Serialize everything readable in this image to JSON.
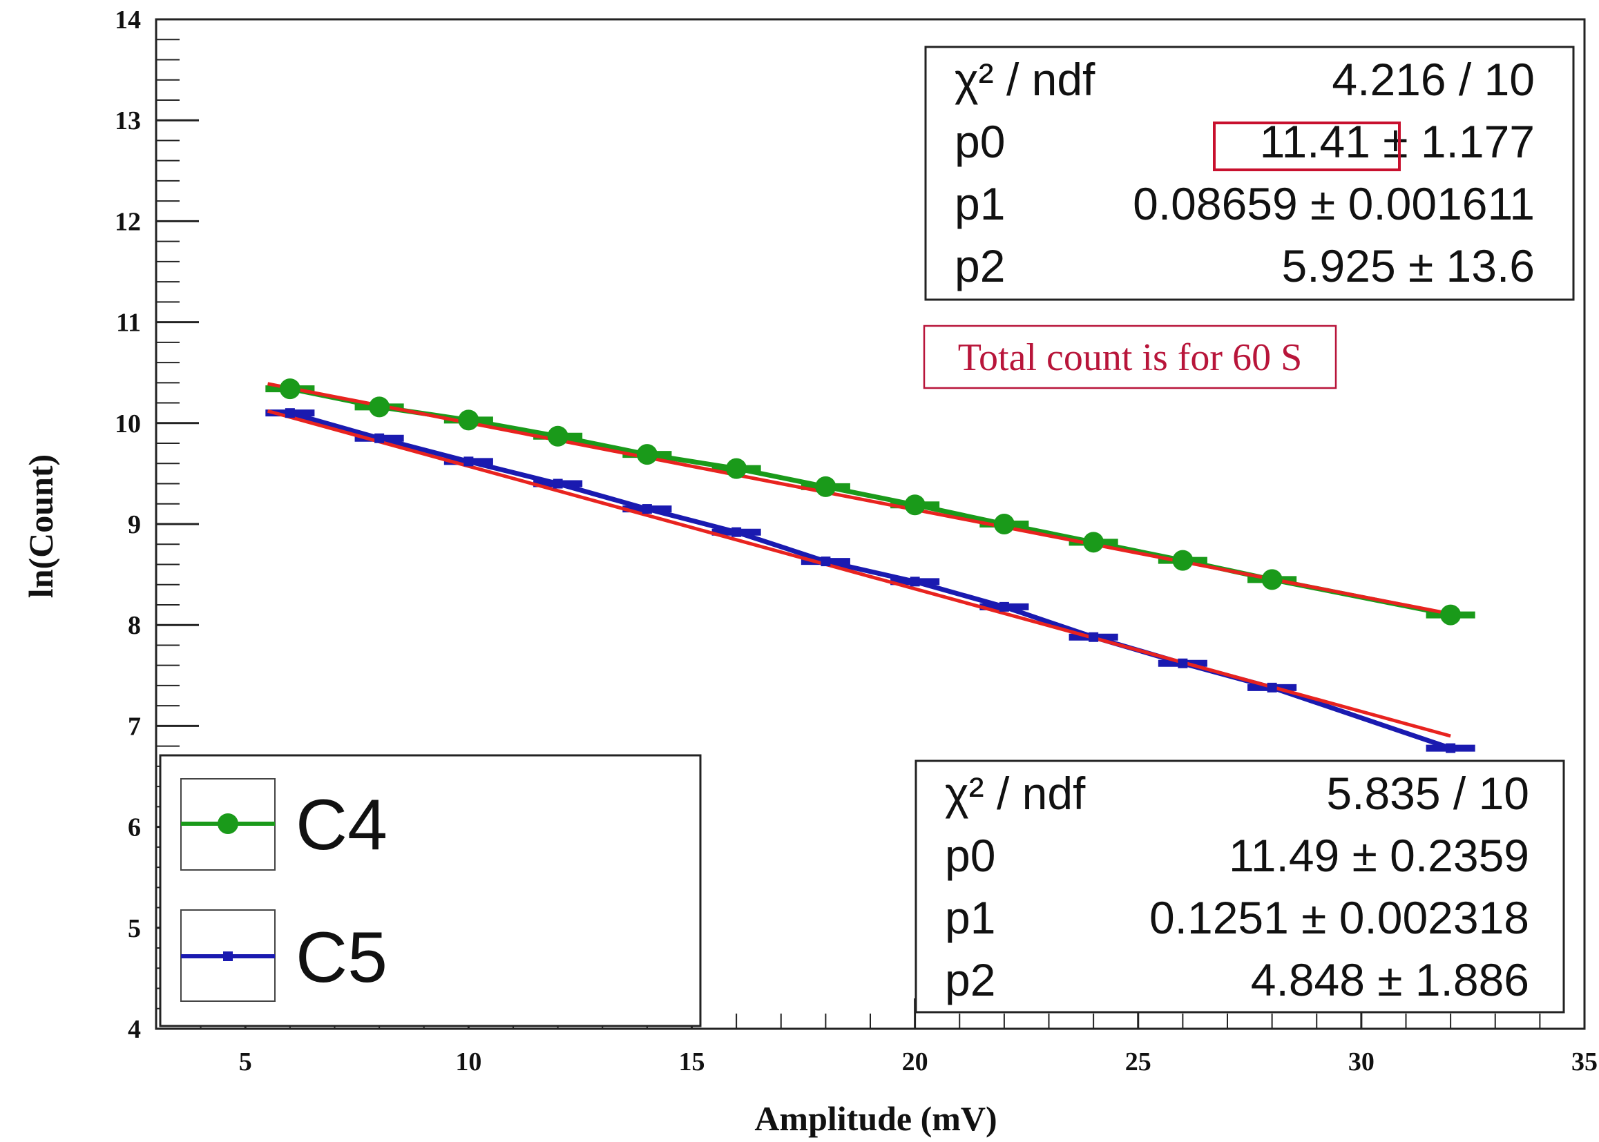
{
  "chart_data": {
    "type": "line",
    "title": "",
    "xlabel": "Amplitude (mV)",
    "ylabel": "ln(Count)",
    "xlim": [
      3,
      35
    ],
    "ylim": [
      4,
      14
    ],
    "x_ticks": [
      5,
      10,
      15,
      20,
      25,
      30,
      35
    ],
    "y_ticks": [
      4,
      5,
      6,
      7,
      8,
      9,
      10,
      11,
      12,
      13,
      14
    ],
    "grid": false,
    "legend_position": "bottom-left",
    "series": [
      {
        "name": "C4",
        "color": "#1a9a1a",
        "marker": "circle",
        "x": [
          6,
          8,
          10,
          12,
          14,
          16,
          18,
          20,
          22,
          24,
          26,
          28,
          32
        ],
        "y": [
          10.34,
          10.16,
          10.03,
          9.87,
          9.69,
          9.55,
          9.37,
          9.19,
          9.0,
          8.82,
          8.64,
          8.45,
          8.1
        ],
        "fit": {
          "color": "#e8231f",
          "x": [
            5.5,
            32
          ],
          "y": [
            10.39,
            8.11
          ]
        }
      },
      {
        "name": "C5",
        "color": "#1a1ab0",
        "marker": "square",
        "x": [
          6,
          8,
          10,
          12,
          14,
          16,
          18,
          20,
          22,
          24,
          26,
          28,
          32
        ],
        "y": [
          10.1,
          9.85,
          9.62,
          9.4,
          9.15,
          8.92,
          8.63,
          8.43,
          8.18,
          7.88,
          7.62,
          7.38,
          6.78
        ],
        "fit": {
          "color": "#e8231f",
          "x": [
            5.5,
            32
          ],
          "y": [
            10.12,
            6.9
          ]
        }
      }
    ],
    "stat_boxes": [
      {
        "rows": [
          {
            "label": "χ² / ndf",
            "value": "4.216 / 10"
          },
          {
            "label": "p0",
            "value": "11.41 ± 1.177"
          },
          {
            "label": "p1",
            "value": "0.08659 ± 0.001611"
          },
          {
            "label": "p2",
            "value": "5.925 ±  13.6"
          }
        ]
      },
      {
        "rows": [
          {
            "label": "χ² / ndf",
            "value": "5.835 / 10"
          },
          {
            "label": "p0",
            "value": "11.49 ± 0.2359"
          },
          {
            "label": "p1",
            "value": "0.1251 ± 0.002318"
          },
          {
            "label": "p2",
            "value": "4.848 ± 1.886"
          }
        ]
      }
    ],
    "annotation": "Total count is for 60 S",
    "highlight_color": "#c8102e"
  }
}
